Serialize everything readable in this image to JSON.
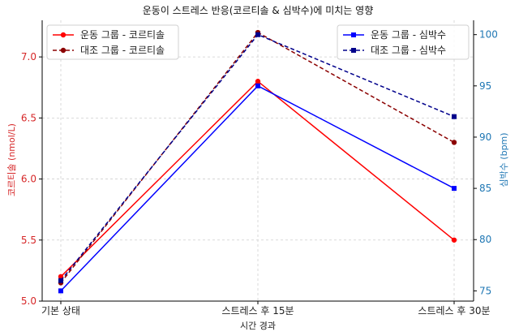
{
  "chart_data": {
    "type": "line",
    "title": "운동이 스트레스 반응(코르티솔 & 심박수)에 미치는 영향",
    "xlabel": "시간 경과",
    "categories": [
      "기본 상태",
      "스트레스 후 15분",
      "스트레스 후 30분"
    ],
    "left_axis": {
      "label": "코르티솔 (nmol/L)",
      "color": "#d62728",
      "ylim": [
        5.0,
        7.3
      ],
      "ticks": [
        "5.0",
        "5.5",
        "6.0",
        "6.5",
        "7.0"
      ],
      "tick_values": [
        5.0,
        5.5,
        6.0,
        6.5,
        7.0
      ]
    },
    "right_axis": {
      "label": "심박수 (bpm)",
      "color": "#1f77b4",
      "ylim": [
        74.0,
        101.4
      ],
      "ticks": [
        "75",
        "80",
        "85",
        "90",
        "95",
        "100"
      ],
      "tick_values": [
        75,
        80,
        85,
        90,
        95,
        100
      ]
    },
    "grid": true,
    "series": [
      {
        "name": "운동 그룹 - 코르티솔",
        "axis": "left",
        "values": [
          5.2,
          6.8,
          5.5
        ],
        "color": "#ff0000",
        "dashed": false,
        "marker": "circle"
      },
      {
        "name": "대조 그룹 - 코르티솔",
        "axis": "left",
        "values": [
          5.15,
          7.2,
          6.3
        ],
        "color": "#8b0000",
        "dashed": true,
        "marker": "circle"
      },
      {
        "name": "운동 그룹 - 심박수",
        "axis": "right",
        "values": [
          75,
          95,
          85
        ],
        "color": "#0000ff",
        "dashed": false,
        "marker": "square"
      },
      {
        "name": "대조 그룹 - 심박수",
        "axis": "right",
        "values": [
          76,
          100,
          92
        ],
        "color": "#00008b",
        "dashed": true,
        "marker": "square"
      }
    ],
    "legends": [
      {
        "placement": "top-left",
        "series": [
          0,
          1
        ]
      },
      {
        "placement": "top-right",
        "series": [
          2,
          3
        ]
      }
    ]
  }
}
